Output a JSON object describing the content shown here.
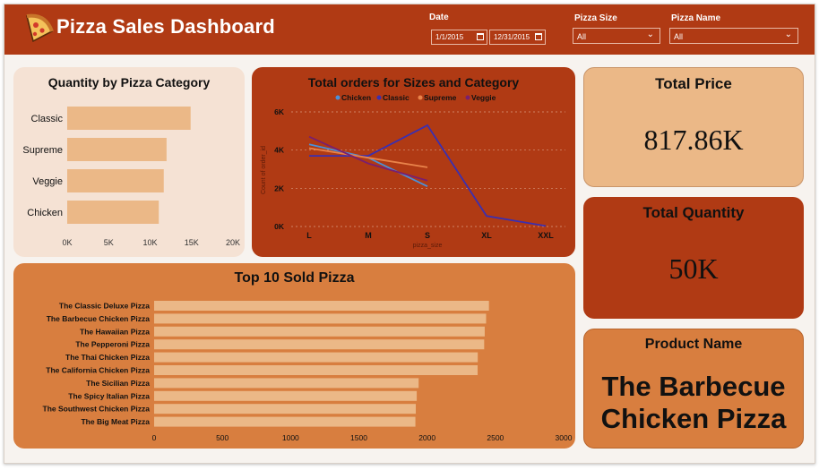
{
  "header": {
    "title": "Pizza Sales Dashboard",
    "logo_icon": "pizza-slice-icon",
    "date_label": "Date",
    "date_start": "1/1/2015",
    "date_end": "12/31/2015",
    "size_label": "Pizza Size",
    "size_value": "All",
    "name_label": "Pizza Name",
    "name_value": "All"
  },
  "colors": {
    "header_bg": "#b03a14",
    "dark_card": "#b03a14",
    "orange_card": "#d87e3f",
    "light_card": "#f5e2d4",
    "tan_card": "#ebb887",
    "bar_fill": "#ebb887"
  },
  "kpis": {
    "price_title": "Total Price",
    "price_value": "817.86K",
    "qty_title": "Total Quantity",
    "qty_value": "50K",
    "product_title": "Product Name",
    "product_line1": "The Barbecue",
    "product_line2": "Chicken Pizza"
  },
  "chart_data": [
    {
      "type": "bar",
      "orientation": "horizontal",
      "title": "Quantity by Pizza Category",
      "categories": [
        "Classic",
        "Supreme",
        "Veggie",
        "Chicken"
      ],
      "values": [
        14888,
        11987,
        11649,
        11050
      ],
      "xlim": [
        0,
        20000
      ],
      "ticks": [
        "0K",
        "5K",
        "10K",
        "15K",
        "20K"
      ],
      "tick_values": [
        0,
        5000,
        10000,
        15000,
        20000
      ]
    },
    {
      "type": "line",
      "title": "Total orders for Sizes and Category",
      "xlabel": "pizza_size",
      "ylabel": "Count of order_id",
      "categories": [
        "L",
        "M",
        "S",
        "XL",
        "XXL"
      ],
      "ylim": [
        0,
        6000
      ],
      "ticks": [
        "0K",
        "2K",
        "4K",
        "6K"
      ],
      "tick_values": [
        0,
        2000,
        4000,
        6000
      ],
      "grid": true,
      "legend_position": "top",
      "series": [
        {
          "name": "Chicken",
          "color": "#4a90d9",
          "values": [
            4300,
            3600,
            2100,
            null,
            null
          ]
        },
        {
          "name": "Classic",
          "color": "#3b2fb0",
          "values": [
            3700,
            3700,
            5300,
            550,
            28
          ]
        },
        {
          "name": "Supreme",
          "color": "#e9834a",
          "values": [
            4100,
            3600,
            3100,
            null,
            null
          ]
        },
        {
          "name": "Veggie",
          "color": "#7a1f6e",
          "values": [
            4700,
            3300,
            2400,
            null,
            null
          ]
        }
      ]
    },
    {
      "type": "bar",
      "orientation": "horizontal",
      "title": "Top 10 Sold Pizza",
      "categories": [
        "The Classic Deluxe Pizza",
        "The Barbecue Chicken Pizza",
        "The Hawaiian Pizza",
        "The Pepperoni Pizza",
        "The Thai Chicken Pizza",
        "The California Chicken Pizza",
        "The Sicilian Pizza",
        "The Spicy Italian Pizza",
        "The Southwest Chicken Pizza",
        "The Big Meat Pizza"
      ],
      "values": [
        2453,
        2432,
        2422,
        2418,
        2371,
        2370,
        1938,
        1924,
        1917,
        1914
      ],
      "xlim": [
        0,
        3000
      ],
      "ticks": [
        "0",
        "500",
        "1000",
        "1500",
        "2000",
        "2500",
        "3000"
      ],
      "tick_values": [
        0,
        500,
        1000,
        1500,
        2000,
        2500,
        3000
      ]
    }
  ]
}
